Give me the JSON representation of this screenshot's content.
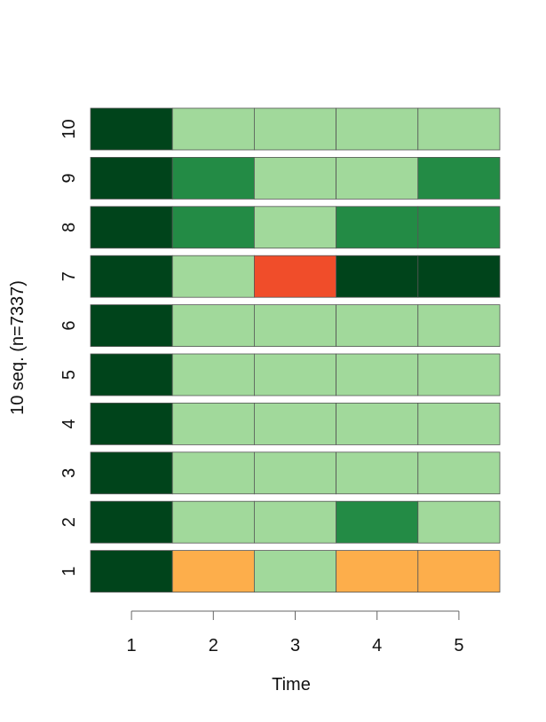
{
  "chart_data": {
    "type": "heatmap",
    "xlabel": "Time",
    "ylabel": "10 seq. (n=7337)",
    "x": [
      "1",
      "2",
      "3",
      "4",
      "5"
    ],
    "y": [
      "1",
      "2",
      "3",
      "4",
      "5",
      "6",
      "7",
      "8",
      "9",
      "10"
    ],
    "state_colors": {
      "A": "#00441b",
      "B": "#238b45",
      "C": "#a1d99b",
      "D": "#fdae4b",
      "E": "#f04d2a"
    },
    "grid": false,
    "sequences": [
      {
        "name": "1",
        "states": [
          "A",
          "D",
          "C",
          "D",
          "D"
        ]
      },
      {
        "name": "2",
        "states": [
          "A",
          "C",
          "C",
          "B",
          "C"
        ]
      },
      {
        "name": "3",
        "states": [
          "A",
          "C",
          "C",
          "C",
          "C"
        ]
      },
      {
        "name": "4",
        "states": [
          "A",
          "C",
          "C",
          "C",
          "C"
        ]
      },
      {
        "name": "5",
        "states": [
          "A",
          "C",
          "C",
          "C",
          "C"
        ]
      },
      {
        "name": "6",
        "states": [
          "A",
          "C",
          "C",
          "C",
          "C"
        ]
      },
      {
        "name": "7",
        "states": [
          "A",
          "C",
          "E",
          "A",
          "A"
        ]
      },
      {
        "name": "8",
        "states": [
          "A",
          "B",
          "C",
          "B",
          "B"
        ]
      },
      {
        "name": "9",
        "states": [
          "A",
          "B",
          "C",
          "C",
          "B"
        ]
      },
      {
        "name": "10",
        "states": [
          "A",
          "C",
          "C",
          "C",
          "C"
        ]
      }
    ]
  }
}
